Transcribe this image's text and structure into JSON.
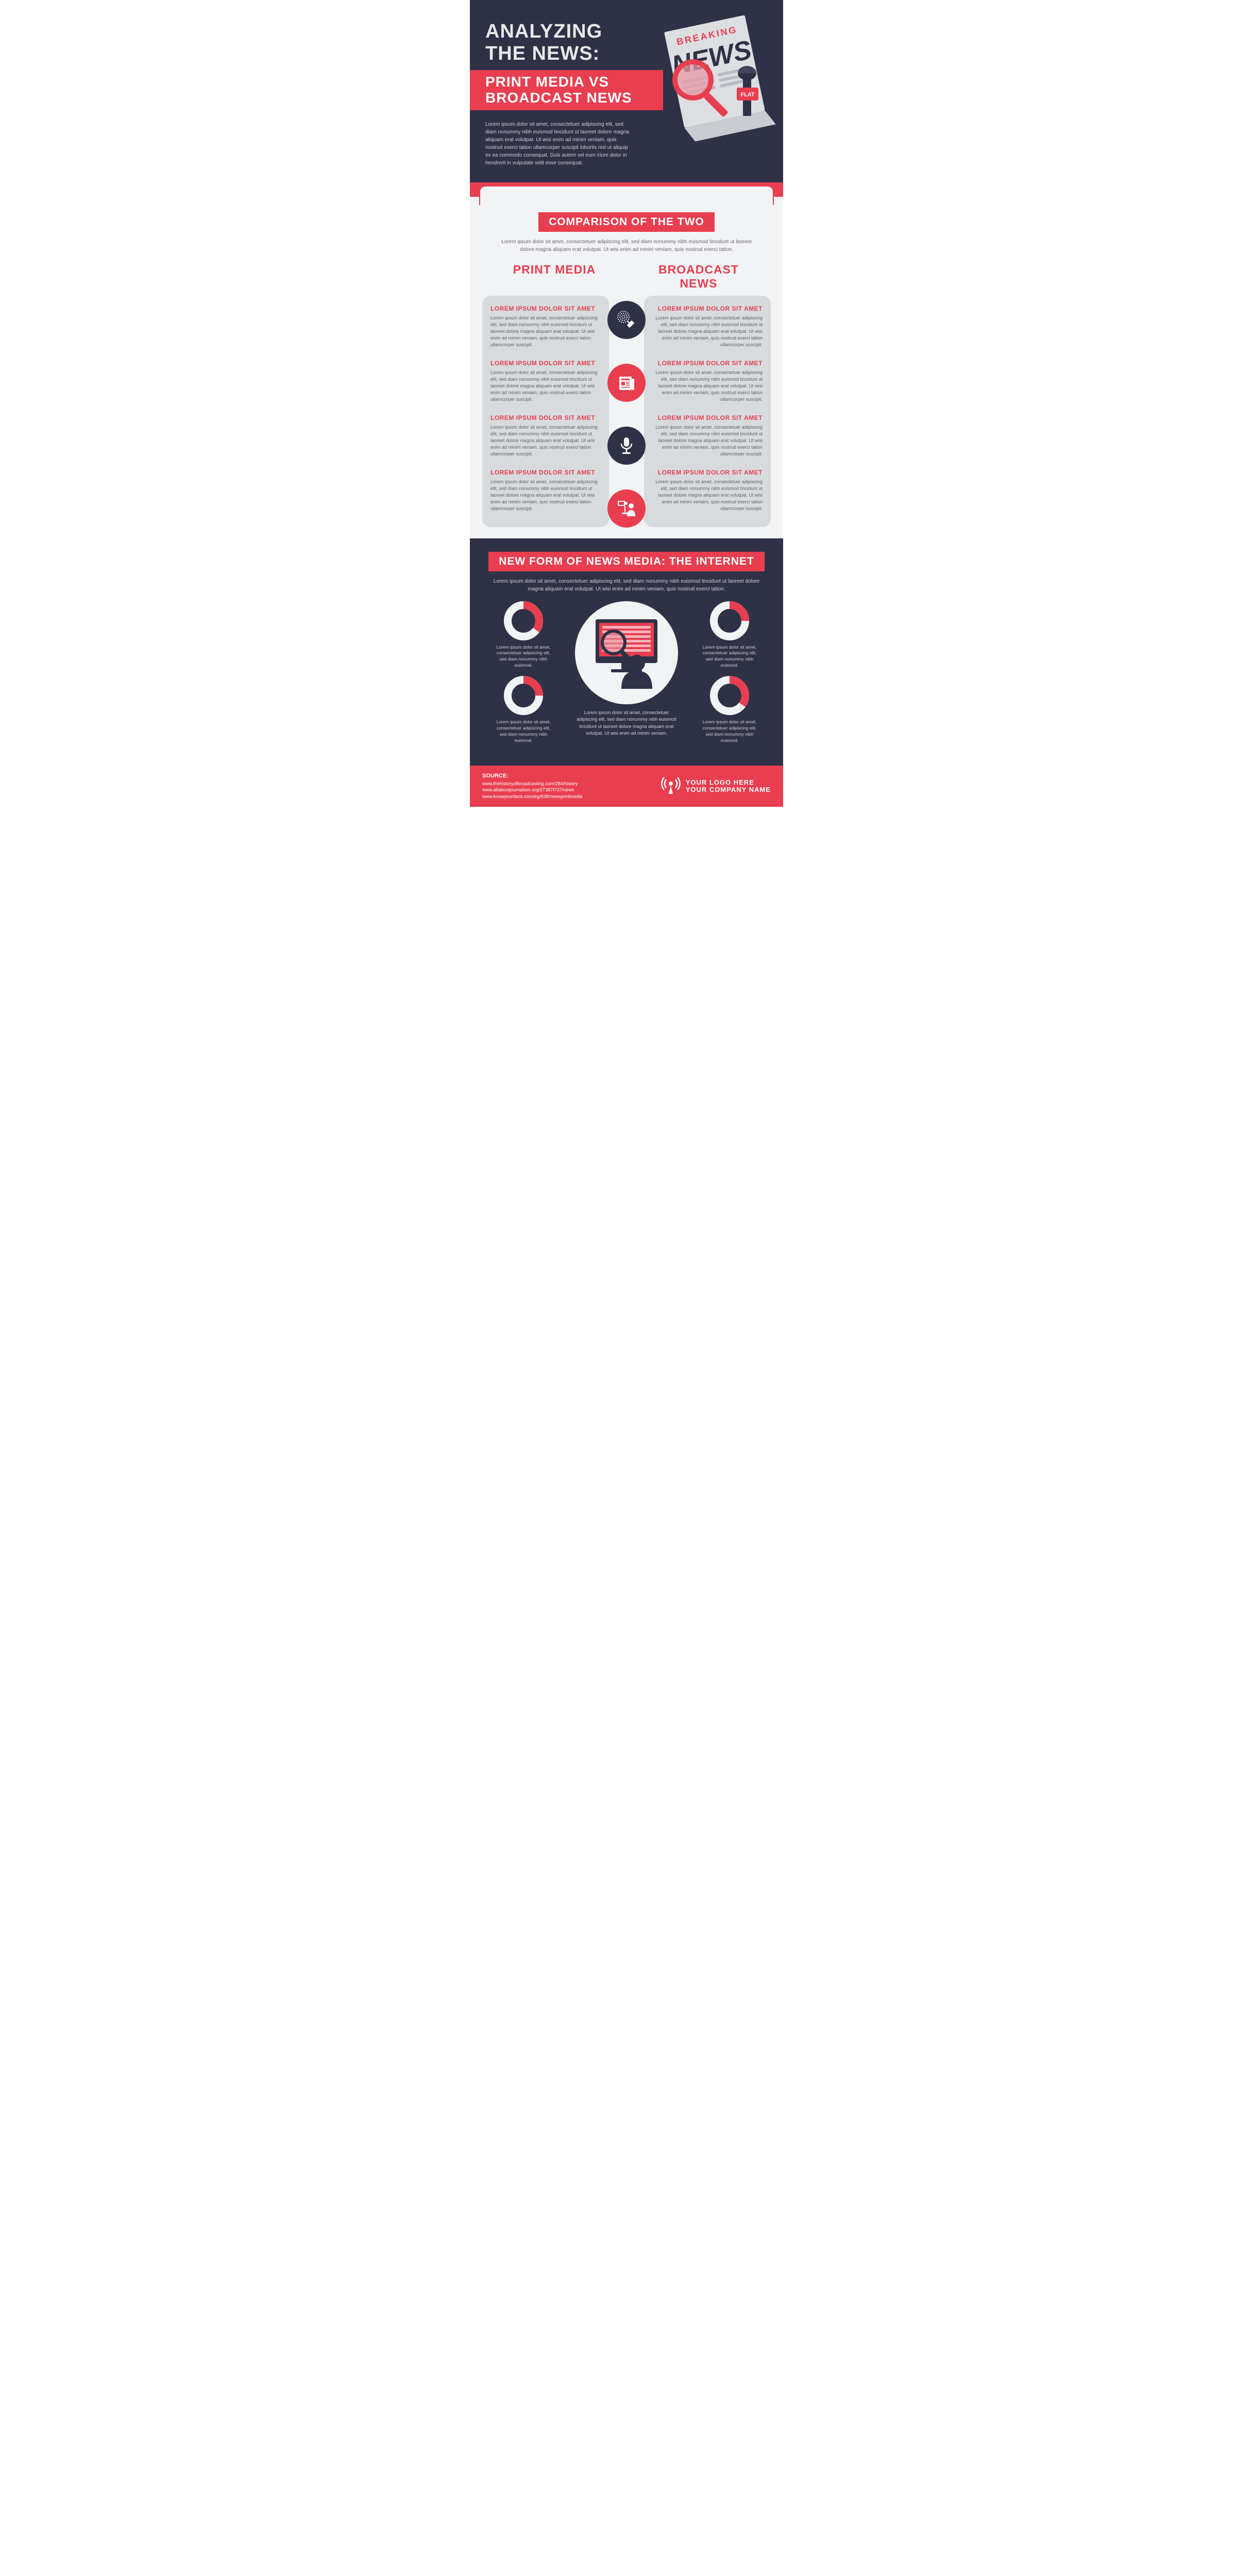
{
  "colors": {
    "dark": "#2f3147",
    "red": "#e83e4f",
    "light_bg": "#f2f3f4",
    "panel": "#d8dbde",
    "text_muted": "#cfcfd6",
    "text_gray": "#6a6a70"
  },
  "header": {
    "title1": "ANALYZING",
    "title2": "THE NEWS:",
    "subtitle1": "PRINT MEDIA VS",
    "subtitle2": "BROADCAST NEWS",
    "desc": "Lorem ipsum dolor sit amet, consectetuer adipiscing elit, sed diam nonummy nibh euismod tincidunt ut laoreet dolore magna aliquam erat volutpat. Ut wisi enim ad minim veniam, quis nostrud exerci tation ullamcorper suscipit lobortis nisl ut aliquip ex ea commodo consequat. Duis autem vel eum iriure dolor in hendrerit in vulputate velit esse consequat.",
    "art": {
      "breaking": "BREAKING",
      "news": "NEWS",
      "tv_label": "FLAT"
    }
  },
  "comparison": {
    "title": "COMPARISON OF THE TWO",
    "desc": "Lorem ipsum dolor sit amet, consectetuer adipiscing elit, sed diam nonummy nibh euismod tincidunt ut laoreet dolore magna aliquam erat volutpat. Ut wisi enim ad minim veniam, quis nostrud exerci tation.",
    "col1_title": "PRINT MEDIA",
    "col2_title": "BROADCAST NEWS",
    "icons": [
      "satellite",
      "newspaper",
      "microphone",
      "reporter"
    ],
    "icon_styles": [
      "dark",
      "red",
      "dark",
      "red"
    ],
    "left": [
      {
        "title": "LOREM IPSUM DOLOR SIT AMET",
        "text": "Lorem ipsum dolor sit amet, consectetuer adipiscing elit, sed diam nonummy nibh euismod tincidunt ut laoreet dolore magna aliquam erat volutpat. Ut wisi enim ad minim veniam, quis nostrud exerci tation ullamcorper suscipit."
      },
      {
        "title": "LOREM IPSUM DOLOR SIT AMET",
        "text": "Lorem ipsum dolor sit amet, consectetuer adipiscing elit, sed diam nonummy nibh euismod tincidunt ut laoreet dolore magna aliquam erat volutpat. Ut wisi enim ad minim veniam, quis nostrud exerci tation ullamcorper suscipit."
      },
      {
        "title": "LOREM IPSUM DOLOR SIT AMET",
        "text": "Lorem ipsum dolor sit amet, consectetuer adipiscing elit, sed diam nonummy nibh euismod tincidunt ut laoreet dolore magna aliquam erat volutpat. Ut wisi enim ad minim veniam, quis nostrud exerci tation ullamcorper suscipit."
      },
      {
        "title": "LOREM IPSUM DOLOR SIT AMET",
        "text": "Lorem ipsum dolor sit amet, consectetuer adipiscing elit, sed diam nonummy nibh euismod tincidunt ut laoreet dolore magna aliquam erat volutpat. Ut wisi enim ad minim veniam, quis nostrud exerci tation ullamcorper suscipit."
      }
    ],
    "right": [
      {
        "title": "LOREM IPSUM DOLOR SIT AMET",
        "text": "Lorem ipsum dolor sit amet, consectetuer adipiscing elit, sed diam nonummy nibh euismod tincidunt ut laoreet dolore magna aliquam erat volutpat. Ut wisi enim ad minim veniam, quis nostrud exerci tation ullamcorper suscipit."
      },
      {
        "title": "LOREM IPSUM DOLOR SIT AMET",
        "text": "Lorem ipsum dolor sit amet, consectetuer adipiscing elit, sed diam nonummy nibh euismod tincidunt ut laoreet dolore magna aliquam erat volutpat. Ut wisi enim ad minim veniam, quis nostrud exerci tation ullamcorper suscipit."
      },
      {
        "title": "LOREM IPSUM DOLOR SIT AMET",
        "text": "Lorem ipsum dolor sit amet, consectetuer adipiscing elit, sed diam nonummy nibh euismod tincidunt ut laoreet dolore magna aliquam erat volutpat. Ut wisi enim ad minim veniam, quis nostrud exerci tation ullamcorper suscipit."
      },
      {
        "title": "LOREM IPSUM DOLOR SIT AMET",
        "text": "Lorem ipsum dolor sit amet, consectetuer adipiscing elit, sed diam nonummy nibh euismod tincidunt ut laoreet dolore magna aliquam erat volutpat. Ut wisi enim ad minim veniam, quis nostrud exerci tation ullamcorper suscipit."
      }
    ]
  },
  "internet": {
    "title": "NEW FORM OF NEWS MEDIA: THE INTERNET",
    "desc": "Lorem ipsum dolor sit amet, consectetuer adipiscing elit, sed diam nonummy nibh euismod tincidunt ut laoreet dolore magna aliquam erat volutpat. Ut wisi enim ad minim veniam, quis nostrud exerci tation.",
    "donuts": [
      {
        "value": 35,
        "caption": "Lorem ipsum dolor sit amet, consectetuer adipiscing elit, sed diam nonummy nibh euismod."
      },
      {
        "value": 25,
        "caption": "Lorem ipsum dolor sit amet, consectetuer adipiscing elit, sed diam nonummy nibh euismod."
      },
      {
        "value": 25,
        "caption": "Lorem ipsum dolor sit amet, consectetuer adipiscing elit, sed diam nonummy nibh euismod."
      },
      {
        "value": 35,
        "caption": "Lorem ipsum dolor sit amet, consectetuer adipiscing elit, sed diam nonummy nibh euismod."
      }
    ],
    "donut_style": {
      "size": 76,
      "stroke_width": 15,
      "empty_color": "#f2f3f4",
      "fill_color": "#e83e4f",
      "bg_color": "#2f3147"
    },
    "center_caption": "Lorem ipsum dolor sit amet, consectetuer adipiscing elit, sed diam nonummy nibh euismod tincidunt ut laoreet dolore magna aliquam erat volutpat. Ut wisi enim ad minim veniam."
  },
  "footer": {
    "source_label": "SOURCE:",
    "urls": [
      "www.thehistoryofbroadcasting.com/284/history",
      "www.allaboutjournalism.org/27387f737/news",
      "www.knowyourfacts.com/eg/838/newsprintmedia"
    ],
    "logo1": "YOUR LOGO HERE",
    "logo2": "YOUR COMPANY NAME"
  }
}
